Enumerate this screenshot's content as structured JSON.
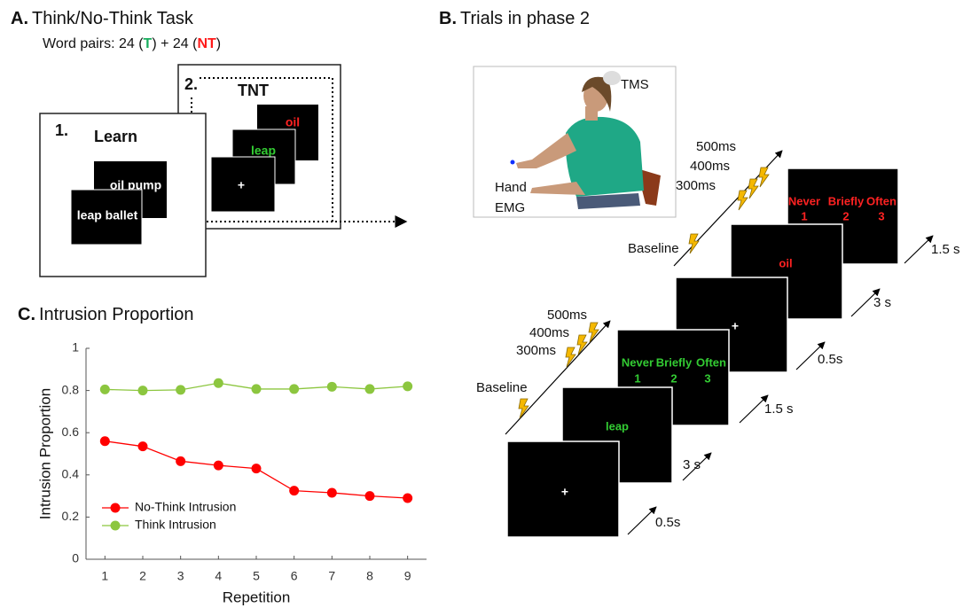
{
  "panel_a": {
    "label": "A.",
    "title": "Think/No-Think Task",
    "subtitle": [
      "Word pairs: 24 (",
      "T",
      ") + 24 (",
      "NT",
      ")"
    ],
    "learn_box": {
      "number": "1.",
      "title": "Learn",
      "cards": [
        "oil pump",
        "leap ballet"
      ]
    },
    "tnt_box": {
      "number": "2.",
      "title": "TNT",
      "cards": [
        "oil",
        "leap",
        "+"
      ]
    }
  },
  "panel_b": {
    "label": "B.",
    "title": "Trials in phase 2",
    "photo_labels": {
      "tms": "TMS",
      "hand": "Hand",
      "emg": "EMG"
    },
    "think_trial": {
      "screens": [
        "+",
        "leap"
      ],
      "rating_words": [
        "Never",
        "Briefly",
        "Often"
      ],
      "rating_numbers": [
        "1",
        "2",
        "3"
      ],
      "durations": [
        "0.5s",
        "3 s",
        "1.5 s"
      ],
      "tms_labels": [
        "Baseline",
        "300ms",
        "400ms",
        "500ms"
      ]
    },
    "no_think_trial": {
      "screens": [
        "+",
        "oil"
      ],
      "rating_words": [
        "Never",
        "Briefly",
        "Often"
      ],
      "rating_numbers": [
        "1",
        "2",
        "3"
      ],
      "durations": [
        "0.5s",
        "3 s",
        "1.5 s"
      ],
      "tms_labels": [
        "Baseline",
        "300ms",
        "400ms",
        "500ms"
      ]
    }
  },
  "chart_data": {
    "type": "line",
    "label": "C.",
    "title": "Intrusion Proportion",
    "x_label": "Repetition",
    "y_label": "Intrusion Proportion",
    "x": [
      1,
      2,
      3,
      4,
      5,
      6,
      7,
      8,
      9
    ],
    "xlim": [
      0.5,
      9.5
    ],
    "xticks": [
      1,
      2,
      3,
      4,
      5,
      6,
      7,
      8,
      9
    ],
    "ylim": [
      0,
      1
    ],
    "yticks": [
      0,
      0.2,
      0.4,
      0.6,
      0.8,
      1
    ],
    "legend": "lower left",
    "series": [
      {
        "name": "No-Think Intrusion",
        "color": "#ff0000",
        "values": [
          0.56,
          0.535,
          0.465,
          0.445,
          0.43,
          0.325,
          0.315,
          0.3,
          0.29
        ]
      },
      {
        "name": "Think Intrusion",
        "color": "#8cc63f",
        "values": [
          0.805,
          0.8,
          0.803,
          0.835,
          0.807,
          0.807,
          0.818,
          0.807,
          0.82
        ]
      }
    ]
  }
}
